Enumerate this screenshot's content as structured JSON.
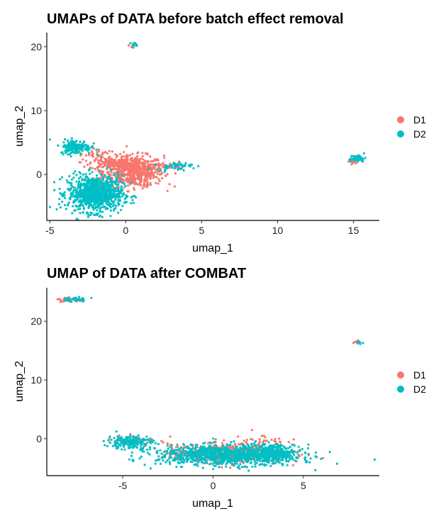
{
  "chart_data": [
    {
      "type": "scatter",
      "title": "UMAPs of DATA before batch effect removal",
      "xlabel": "umap_1",
      "ylabel": "umap_2",
      "xlim": [
        -5.2,
        16.7
      ],
      "ylim": [
        -7.2,
        22.2
      ],
      "xticks": [
        -5,
        0,
        5,
        10,
        15
      ],
      "yticks": [
        0,
        10,
        20
      ],
      "grid": false,
      "legend": "right",
      "series": [
        {
          "name": "D1",
          "color": "#F8766D",
          "clusters": [
            {
              "cx": 0.5,
              "cy": 0.5,
              "sx": 1.0,
              "sy": 1.2,
              "n": 650
            },
            {
              "cx": -1.0,
              "cy": 1.8,
              "sx": 0.7,
              "sy": 0.5,
              "n": 120
            },
            {
              "cx": -2.0,
              "cy": 3.0,
              "sx": 0.5,
              "sy": 0.6,
              "n": 40
            },
            {
              "cx": 2.8,
              "cy": 1.4,
              "sx": 0.5,
              "sy": 0.3,
              "n": 30
            },
            {
              "cx": 0.4,
              "cy": 20.0,
              "sx": 0.1,
              "sy": 0.15,
              "n": 8
            },
            {
              "cx": 15.0,
              "cy": 2.0,
              "sx": 0.25,
              "sy": 0.3,
              "n": 15
            }
          ]
        },
        {
          "name": "D2",
          "color": "#00BFC4",
          "clusters": [
            {
              "cx": -2.0,
              "cy": -3.0,
              "sx": 0.9,
              "sy": 1.4,
              "n": 900
            },
            {
              "cx": -3.3,
              "cy": 4.3,
              "sx": 0.5,
              "sy": 0.55,
              "n": 180
            },
            {
              "cx": 3.2,
              "cy": 1.3,
              "sx": 0.6,
              "sy": 0.3,
              "n": 45
            },
            {
              "cx": 0.6,
              "cy": 20.3,
              "sx": 0.12,
              "sy": 0.15,
              "n": 12
            },
            {
              "cx": 15.3,
              "cy": 2.5,
              "sx": 0.25,
              "sy": 0.3,
              "n": 45
            }
          ]
        }
      ]
    },
    {
      "type": "scatter",
      "title": "UMAP of DATA after COMBAT",
      "xlabel": "umap_1",
      "ylabel": "umap_2",
      "xlim": [
        -9.2,
        9.2
      ],
      "ylim": [
        -6.3,
        25.7
      ],
      "xticks": [
        -5,
        0,
        5
      ],
      "yticks": [
        0,
        10,
        20
      ],
      "grid": false,
      "legend": "right",
      "series": [
        {
          "name": "D1",
          "color": "#F8766D",
          "clusters": [
            {
              "cx": 0.8,
              "cy": -2.5,
              "sx": 1.6,
              "sy": 0.8,
              "n": 500
            },
            {
              "cx": 2.5,
              "cy": -1.0,
              "sx": 0.8,
              "sy": 1.0,
              "n": 60
            },
            {
              "cx": -4.3,
              "cy": -0.3,
              "sx": 0.6,
              "sy": 0.6,
              "n": 40
            },
            {
              "cx": -7.9,
              "cy": 23.6,
              "sx": 0.4,
              "sy": 0.25,
              "n": 25
            },
            {
              "cx": 7.9,
              "cy": 16.6,
              "sx": 0.12,
              "sy": 0.12,
              "n": 8
            }
          ]
        },
        {
          "name": "D2",
          "color": "#00BFC4",
          "clusters": [
            {
              "cx": 0.8,
              "cy": -2.8,
              "sx": 1.9,
              "sy": 0.85,
              "n": 1000
            },
            {
              "cx": 3.5,
              "cy": -2.5,
              "sx": 0.5,
              "sy": 0.8,
              "n": 200
            },
            {
              "cx": -4.6,
              "cy": -0.6,
              "sx": 0.6,
              "sy": 0.6,
              "n": 180
            },
            {
              "cx": -7.7,
              "cy": 23.7,
              "sx": 0.4,
              "sy": 0.2,
              "n": 35
            },
            {
              "cx": 8.1,
              "cy": 16.4,
              "sx": 0.1,
              "sy": 0.12,
              "n": 8
            }
          ]
        }
      ]
    }
  ]
}
